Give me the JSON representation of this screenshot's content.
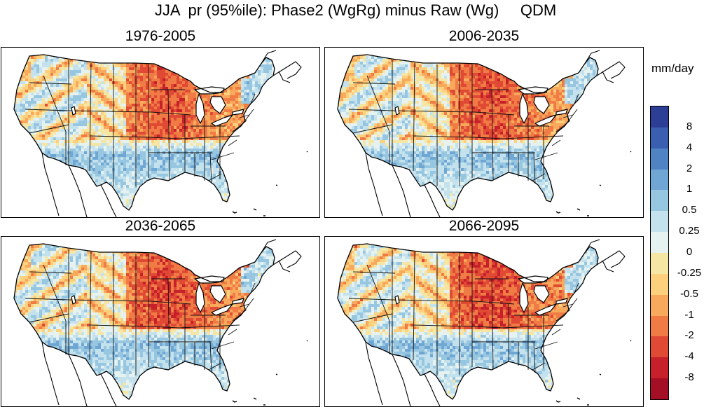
{
  "title": "JJA  pr (95%ile): Phase2 (WgRg) minus Raw (Wg)     QDM",
  "panels": [
    {
      "period": "1976-2005",
      "warmth": 0.9
    },
    {
      "period": "2006-2035",
      "warmth": 0.95
    },
    {
      "period": "2036-2065",
      "warmth": 1.0
    },
    {
      "period": "2066-2095",
      "warmth": 1.05
    }
  ],
  "colorbar": {
    "units": "mm/day",
    "labels": [
      "8",
      "4",
      "2",
      "1",
      "0.5",
      "0.25",
      "0",
      "-0.25",
      "-0.5",
      "-1",
      "-2",
      "-4",
      "-8"
    ],
    "colors": [
      "#2c3e95",
      "#3a5eb0",
      "#4f83c4",
      "#6fa6d3",
      "#97c6e0",
      "#c4e2ee",
      "#e6f2f0",
      "#f6e6a3",
      "#fcd07d",
      "#f8a95c",
      "#f07b45",
      "#e04a34",
      "#c6202a",
      "#a50f26"
    ]
  }
}
